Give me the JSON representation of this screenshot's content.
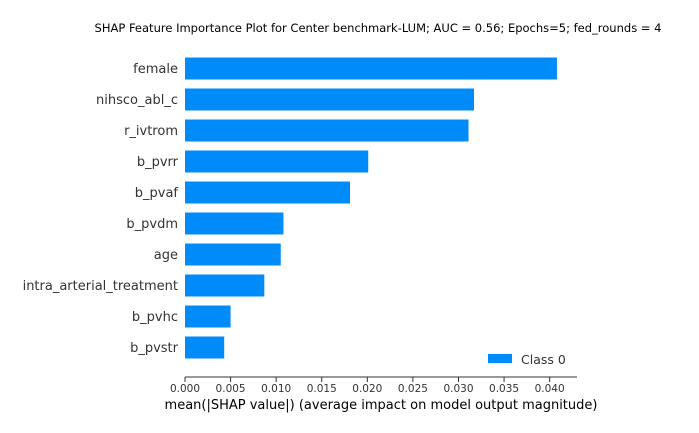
{
  "chart_data": {
    "type": "bar",
    "orientation": "horizontal",
    "title": "SHAP Feature Importance Plot for Center benchmark-LUM; AUC = 0.56; Epochs=5; fed_rounds = 4",
    "xlabel": "mean(|SHAP value|) (average impact on model output magnitude)",
    "ylabel": "",
    "categories": [
      "female",
      "nihsco_abl_c",
      "r_ivtrom",
      "b_pvrr",
      "b_pvaf",
      "b_pvdm",
      "age",
      "intra_arterial_treatment",
      "b_pvhc",
      "b_pvstr"
    ],
    "series": [
      {
        "name": "Class 0",
        "color": "#008bfb",
        "values": [
          0.0408,
          0.0317,
          0.0311,
          0.0201,
          0.0181,
          0.0108,
          0.0105,
          0.0087,
          0.005,
          0.0043
        ]
      }
    ],
    "xlim": [
      0,
      0.043
    ],
    "xticks": [
      "0.000",
      "0.005",
      "0.010",
      "0.015",
      "0.020",
      "0.025",
      "0.030",
      "0.035",
      "0.040"
    ],
    "legend": "lower-right",
    "grid": false
  }
}
